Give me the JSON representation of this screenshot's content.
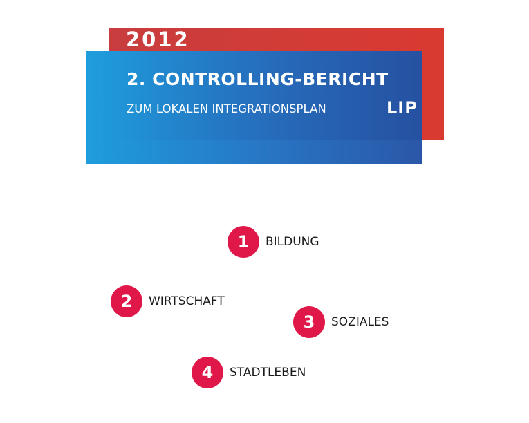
{
  "header": {
    "year": "2012",
    "title": "2. CONTROLLING-BERICHT",
    "subtitle": "ZUM LOKALEN INTEGRATIONSPLAN",
    "abbreviation": "LIP"
  },
  "colors": {
    "red": "#d93a30",
    "blue_light": "#1e9ddc",
    "blue_dark": "#2b57a8",
    "badge": "#e0184a"
  },
  "sections": [
    {
      "number": "1",
      "label": "BILDUNG"
    },
    {
      "number": "2",
      "label": "WIRTSCHAFT"
    },
    {
      "number": "3",
      "label": "SOZIALES"
    },
    {
      "number": "4",
      "label": "STADTLEBEN"
    }
  ]
}
